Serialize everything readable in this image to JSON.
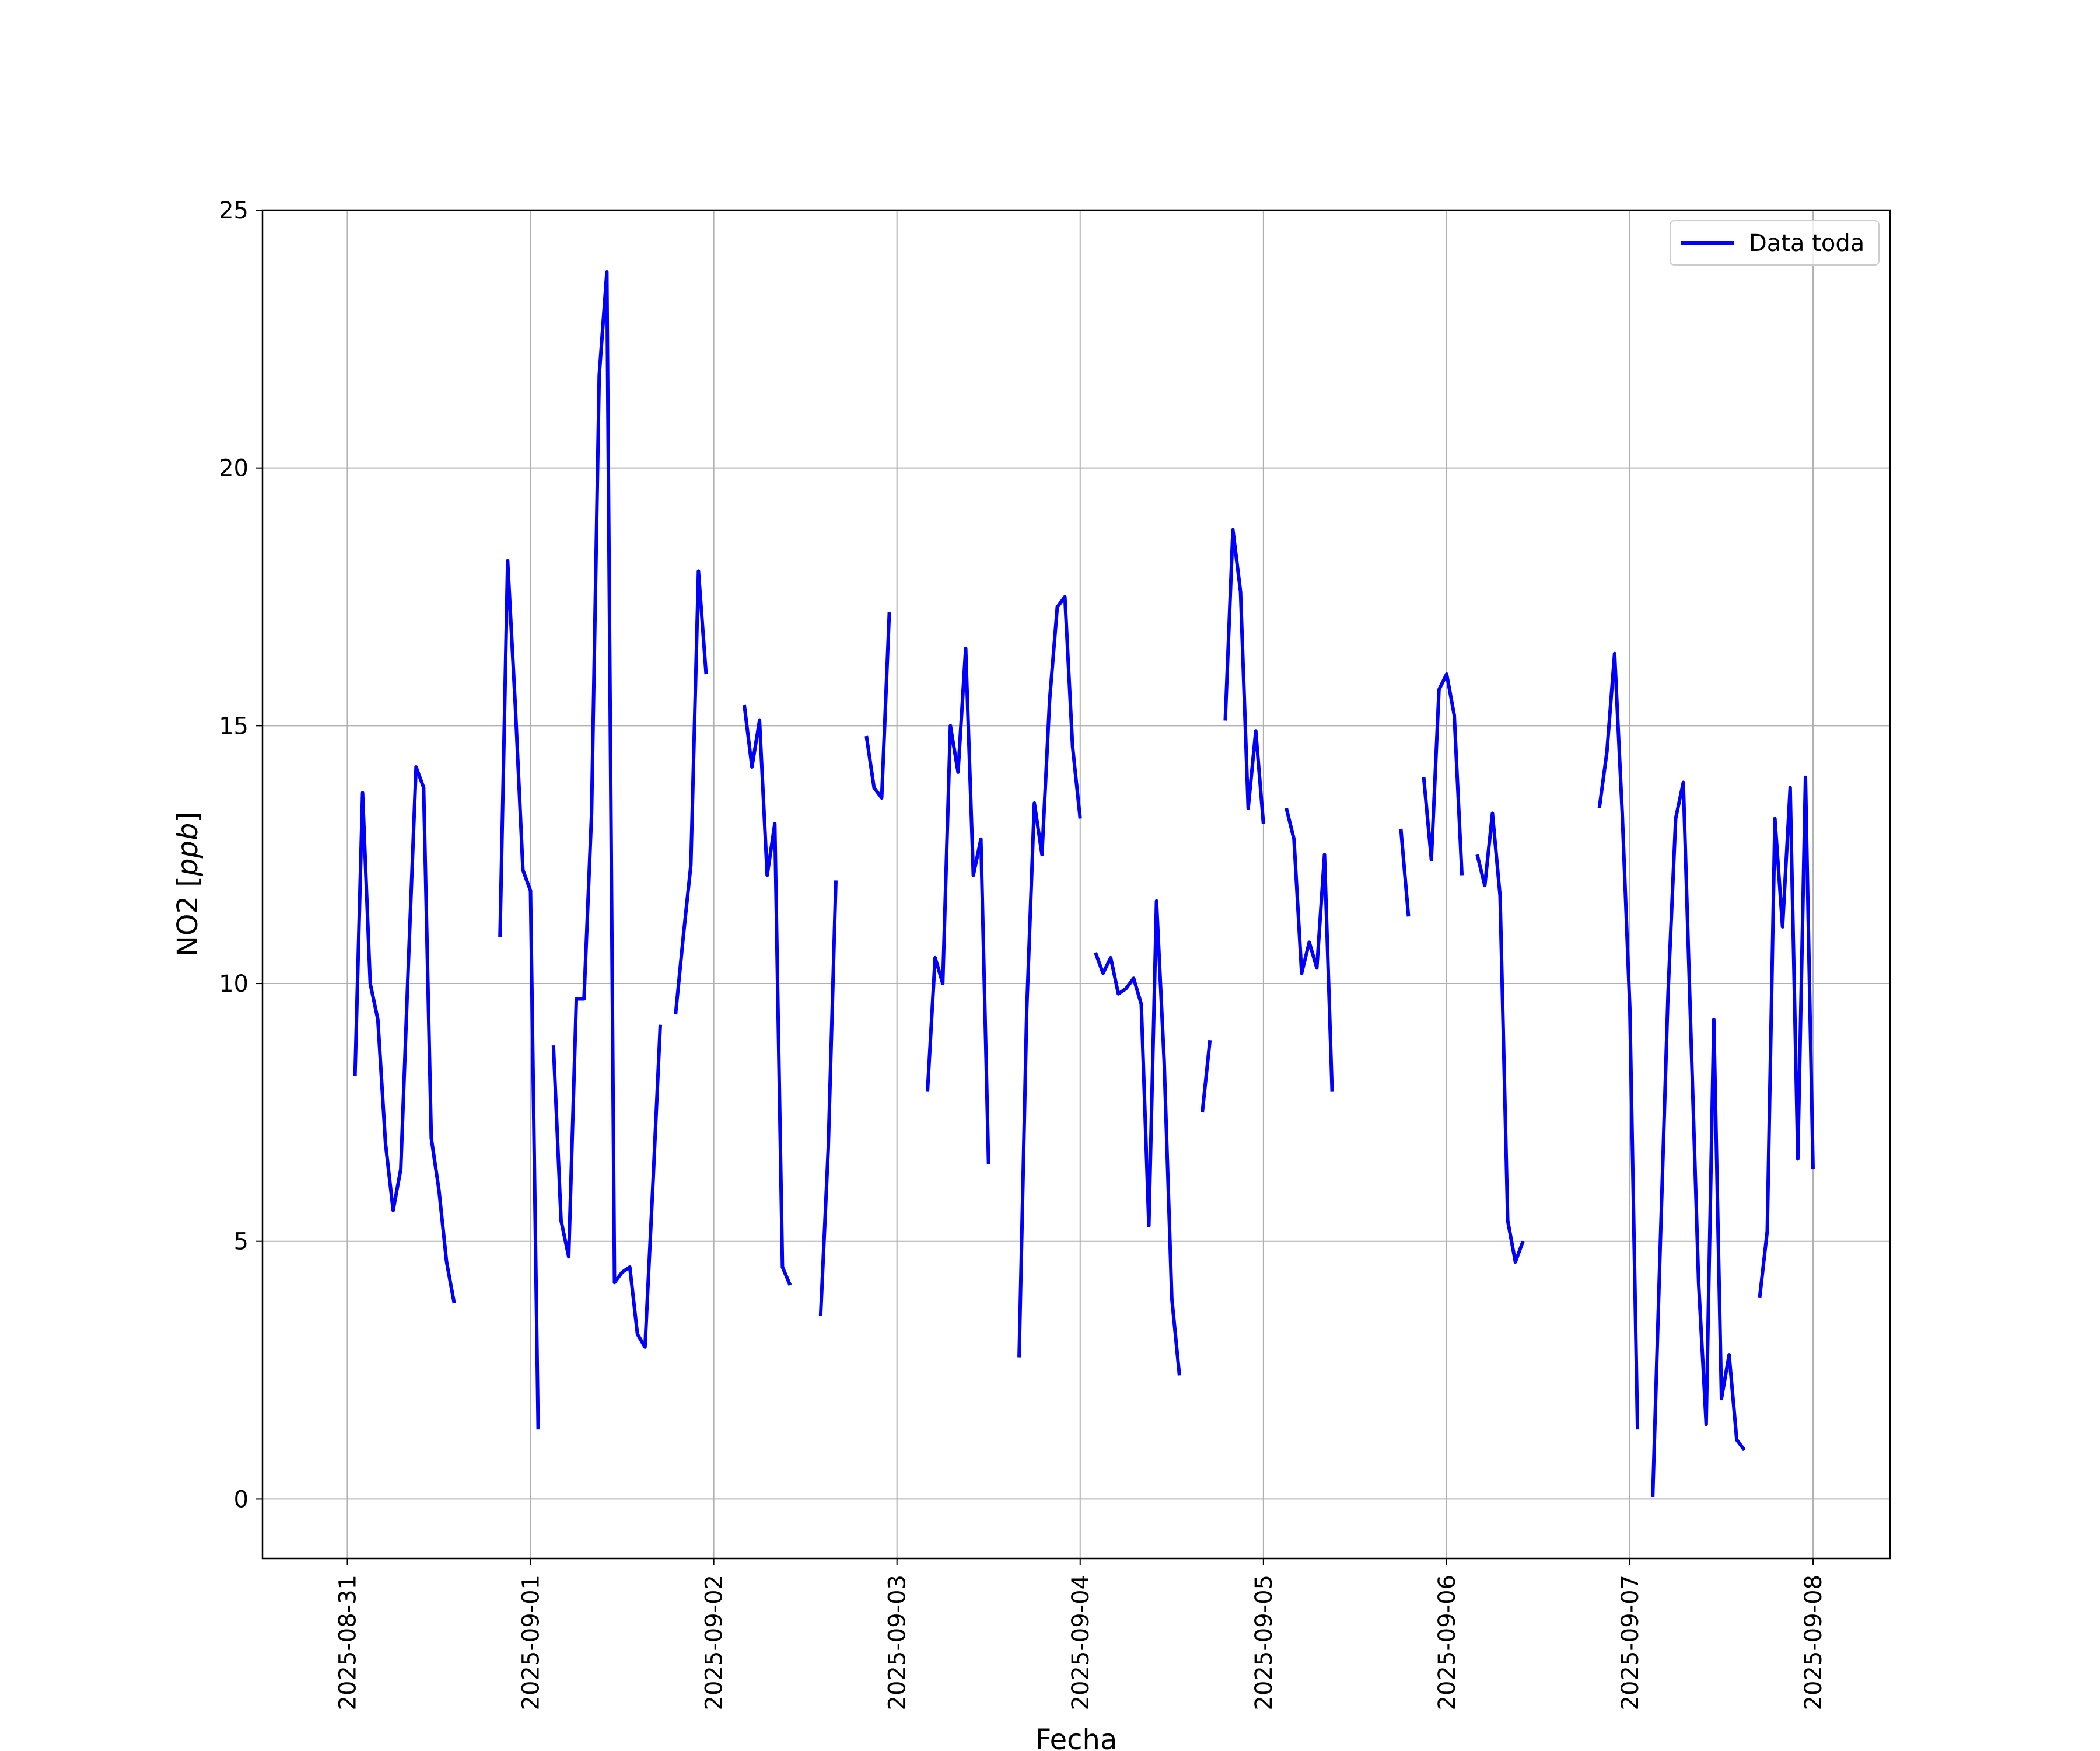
{
  "chart_data": {
    "type": "line",
    "title": "",
    "xlabel": "Fecha",
    "ylabel_prefix": "NO2 [",
    "ylabel_unit": "ppb",
    "ylabel_suffix": "]",
    "xlim": [
      "2025-08-30 12:53",
      "2025-09-08 10:05"
    ],
    "ylim": [
      -1.15,
      25.0
    ],
    "x_ticks": [
      "2025-08-31",
      "2025-09-01",
      "2025-09-02",
      "2025-09-03",
      "2025-09-04",
      "2025-09-05",
      "2025-09-06",
      "2025-09-07",
      "2025-09-08"
    ],
    "y_ticks": [
      0,
      5,
      10,
      15,
      20,
      25
    ],
    "grid": true,
    "legend_position": "upper right",
    "series": [
      {
        "name": "Data toda",
        "color": "#0000ff",
        "segments": [
          [
            [
              "2025-08-31 01:00",
              8.2
            ],
            [
              "2025-08-31 02:00",
              13.7
            ],
            [
              "2025-08-31 03:00",
              10.0
            ],
            [
              "2025-08-31 04:00",
              9.3
            ],
            [
              "2025-08-31 05:00",
              6.9
            ],
            [
              "2025-08-31 06:00",
              5.6
            ],
            [
              "2025-08-31 07:00",
              6.4
            ],
            [
              "2025-08-31 08:00",
              10.4
            ],
            [
              "2025-08-31 09:00",
              14.2
            ],
            [
              "2025-08-31 10:00",
              13.8
            ],
            [
              "2025-08-31 11:00",
              7.0
            ],
            [
              "2025-08-31 12:00",
              6.0
            ],
            [
              "2025-08-31 13:00",
              4.6
            ],
            [
              "2025-08-31 14:00",
              3.8
            ]
          ],
          [
            [
              "2025-08-31 20:00",
              10.9
            ],
            [
              "2025-08-31 21:00",
              18.2
            ],
            [
              "2025-08-31 22:00",
              15.4
            ],
            [
              "2025-08-31 23:00",
              12.2
            ],
            [
              "2025-09-01 00:00",
              11.8
            ],
            [
              "2025-09-01 01:00",
              1.35
            ]
          ],
          [
            [
              "2025-09-01 03:00",
              8.8
            ],
            [
              "2025-09-01 04:00",
              5.4
            ],
            [
              "2025-09-01 05:00",
              4.7
            ],
            [
              "2025-09-01 06:00",
              9.7
            ],
            [
              "2025-09-01 07:00",
              9.7
            ],
            [
              "2025-09-01 08:00",
              13.3
            ],
            [
              "2025-09-01 09:00",
              21.8
            ],
            [
              "2025-09-01 10:00",
              23.8
            ],
            [
              "2025-09-01 11:00",
              4.2
            ],
            [
              "2025-09-01 12:00",
              4.4
            ],
            [
              "2025-09-01 13:00",
              4.5
            ],
            [
              "2025-09-01 14:00",
              3.2
            ],
            [
              "2025-09-01 15:00",
              2.95
            ],
            [
              "2025-09-01 16:00",
              6.0
            ],
            [
              "2025-09-01 17:00",
              9.2
            ]
          ],
          [
            [
              "2025-09-01 19:00",
              9.4
            ],
            [
              "2025-09-01 20:00",
              10.9
            ],
            [
              "2025-09-01 21:00",
              12.3
            ],
            [
              "2025-09-01 22:00",
              18.0
            ],
            [
              "2025-09-01 23:00",
              16.0
            ]
          ],
          [
            [
              "2025-09-02 04:00",
              15.4
            ],
            [
              "2025-09-02 05:00",
              14.2
            ],
            [
              "2025-09-02 06:00",
              15.1
            ],
            [
              "2025-09-02 07:00",
              12.1
            ],
            [
              "2025-09-02 08:00",
              13.1
            ],
            [
              "2025-09-02 09:00",
              4.5
            ],
            [
              "2025-09-02 10:00",
              4.15
            ]
          ],
          [
            [
              "2025-09-02 14:00",
              3.55
            ],
            [
              "2025-09-02 15:00",
              6.8
            ],
            [
              "2025-09-02 16:00",
              12.0
            ]
          ],
          [
            [
              "2025-09-02 20:00",
              14.8
            ],
            [
              "2025-09-02 21:00",
              13.8
            ],
            [
              "2025-09-02 22:00",
              13.6
            ],
            [
              "2025-09-02 23:00",
              17.2
            ]
          ],
          [
            [
              "2025-09-03 04:00",
              7.9
            ],
            [
              "2025-09-03 05:00",
              10.5
            ],
            [
              "2025-09-03 06:00",
              10.0
            ],
            [
              "2025-09-03 07:00",
              15.0
            ],
            [
              "2025-09-03 08:00",
              14.1
            ],
            [
              "2025-09-03 09:00",
              16.5
            ],
            [
              "2025-09-03 10:00",
              12.1
            ],
            [
              "2025-09-03 11:00",
              12.8
            ],
            [
              "2025-09-03 12:00",
              6.5
            ]
          ],
          [
            [
              "2025-09-03 16:00",
              2.75
            ],
            [
              "2025-09-03 17:00",
              9.5
            ],
            [
              "2025-09-03 18:00",
              13.5
            ],
            [
              "2025-09-03 19:00",
              12.5
            ],
            [
              "2025-09-03 20:00",
              15.5
            ],
            [
              "2025-09-03 21:00",
              17.3
            ],
            [
              "2025-09-03 22:00",
              17.5
            ],
            [
              "2025-09-03 23:00",
              14.6
            ],
            [
              "2025-09-04 00:00",
              13.2
            ]
          ],
          [
            [
              "2025-09-04 02:00",
              10.6
            ],
            [
              "2025-09-04 03:00",
              10.2
            ],
            [
              "2025-09-04 04:00",
              10.5
            ],
            [
              "2025-09-04 05:00",
              9.8
            ],
            [
              "2025-09-04 06:00",
              9.9
            ],
            [
              "2025-09-04 07:00",
              10.1
            ],
            [
              "2025-09-04 08:00",
              9.6
            ],
            [
              "2025-09-04 09:00",
              5.3
            ],
            [
              "2025-09-04 10:00",
              11.6
            ],
            [
              "2025-09-04 11:00",
              8.5
            ],
            [
              "2025-09-04 12:00",
              3.9
            ],
            [
              "2025-09-04 13:00",
              2.4
            ]
          ],
          [
            [
              "2025-09-04 16:00",
              7.5
            ],
            [
              "2025-09-04 17:00",
              8.9
            ]
          ],
          [
            [
              "2025-09-04 19:00",
              15.1
            ],
            [
              "2025-09-04 20:00",
              18.8
            ],
            [
              "2025-09-04 21:00",
              17.6
            ],
            [
              "2025-09-04 22:00",
              13.4
            ],
            [
              "2025-09-04 23:00",
              14.9
            ],
            [
              "2025-09-05 00:00",
              13.1
            ]
          ],
          [
            [
              "2025-09-05 03:00",
              13.4
            ],
            [
              "2025-09-05 04:00",
              12.8
            ],
            [
              "2025-09-05 05:00",
              10.2
            ],
            [
              "2025-09-05 06:00",
              10.8
            ],
            [
              "2025-09-05 07:00",
              10.3
            ],
            [
              "2025-09-05 08:00",
              12.5
            ],
            [
              "2025-09-05 09:00",
              7.9
            ]
          ],
          [
            [
              "2025-09-05 18:00",
              13.0
            ],
            [
              "2025-09-05 19:00",
              11.3
            ]
          ],
          [
            [
              "2025-09-05 21:00",
              14.0
            ],
            [
              "2025-09-05 22:00",
              12.4
            ],
            [
              "2025-09-05 23:00",
              15.7
            ],
            [
              "2025-09-06 00:00",
              16.0
            ],
            [
              "2025-09-06 01:00",
              15.2
            ],
            [
              "2025-09-06 02:00",
              12.1
            ]
          ],
          [
            [
              "2025-09-06 04:00",
              12.5
            ],
            [
              "2025-09-06 05:00",
              11.9
            ],
            [
              "2025-09-06 06:00",
              13.3
            ],
            [
              "2025-09-06 07:00",
              11.7
            ],
            [
              "2025-09-06 08:00",
              5.4
            ],
            [
              "2025-09-06 09:00",
              4.6
            ],
            [
              "2025-09-06 10:00",
              5.0
            ]
          ],
          [
            [
              "2025-09-06 20:00",
              13.4
            ],
            [
              "2025-09-06 21:00",
              14.5
            ],
            [
              "2025-09-06 22:00",
              16.4
            ],
            [
              "2025-09-06 23:00",
              13.3
            ],
            [
              "2025-09-07 00:00",
              9.5
            ],
            [
              "2025-09-07 01:00",
              1.35
            ]
          ],
          [
            [
              "2025-09-07 03:00",
              0.05
            ],
            [
              "2025-09-07 04:00",
              5.0
            ],
            [
              "2025-09-07 05:00",
              9.8
            ],
            [
              "2025-09-07 06:00",
              13.2
            ],
            [
              "2025-09-07 07:00",
              13.9
            ],
            [
              "2025-09-07 08:00",
              9.0
            ],
            [
              "2025-09-07 09:00",
              4.2
            ],
            [
              "2025-09-07 10:00",
              1.45
            ],
            [
              "2025-09-07 11:00",
              9.3
            ],
            [
              "2025-09-07 12:00",
              1.95
            ],
            [
              "2025-09-07 13:00",
              2.8
            ],
            [
              "2025-09-07 14:00",
              1.15
            ],
            [
              "2025-09-07 15:00",
              0.95
            ]
          ],
          [
            [
              "2025-09-07 17:00",
              3.9
            ],
            [
              "2025-09-07 18:00",
              5.2
            ],
            [
              "2025-09-07 19:00",
              13.2
            ],
            [
              "2025-09-07 20:00",
              11.1
            ],
            [
              "2025-09-07 21:00",
              13.8
            ],
            [
              "2025-09-07 22:00",
              6.6
            ],
            [
              "2025-09-07 23:00",
              14.0
            ],
            [
              "2025-09-08 00:00",
              6.4
            ]
          ]
        ]
      }
    ]
  }
}
